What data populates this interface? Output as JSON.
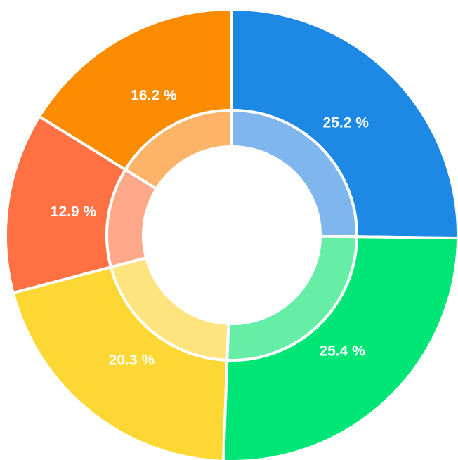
{
  "chart_data": {
    "type": "pie",
    "variant": "donut",
    "start_angle_deg": 0,
    "direction": "clockwise",
    "slices": [
      {
        "value": 25.2,
        "label": "25.2 %",
        "color": "#1E88E5",
        "inner_color": "#7FB6EE"
      },
      {
        "value": 25.4,
        "label": "25.4 %",
        "color": "#00E676",
        "inner_color": "#66EDA6"
      },
      {
        "value": 20.3,
        "label": "20.3 %",
        "color": "#FDD835",
        "inner_color": "#FDE47E"
      },
      {
        "value": 12.9,
        "label": "12.9 %",
        "color": "#FF7043",
        "inner_color": "#FFA98A"
      },
      {
        "value": 16.2,
        "label": "16.2 %",
        "color": "#FB8C00",
        "inner_color": "#FDB468"
      }
    ],
    "legend": "none",
    "title": ""
  }
}
